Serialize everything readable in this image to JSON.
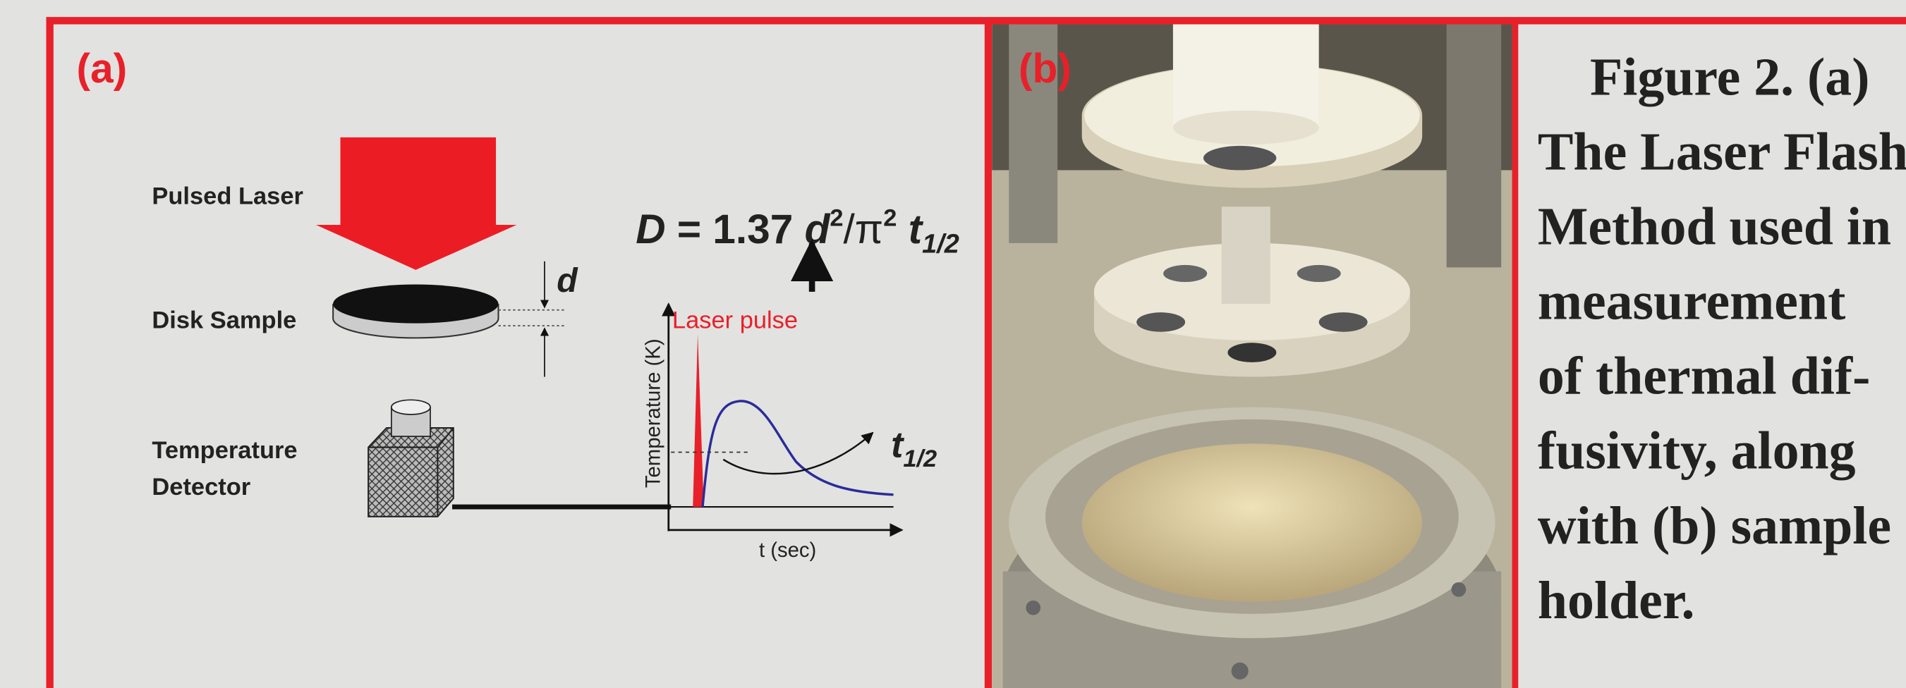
{
  "panel_a": {
    "label": "(a)",
    "pulsed_laser": "Pulsed Laser",
    "disk_sample": "Disk Sample",
    "detector_lines": [
      "Temperature",
      "Detector"
    ],
    "thickness": "d",
    "laser_pulse": "Laser pulse",
    "y_axis": "Temperature (K)",
    "x_axis": "t (sec)",
    "half_time": {
      "base": "t",
      "sub": "1/2"
    },
    "formula": [
      "D",
      " = 1.37 ",
      "d",
      "2",
      "/π",
      "2",
      " t",
      "1/2"
    ]
  },
  "panel_b": {
    "label": "(b)"
  },
  "caption": {
    "lines": [
      "Figure 2. (a)",
      "The Laser Flash",
      "Method used in",
      "measurement",
      "of thermal dif-",
      "fusivity, along",
      "with (b) sample",
      "holder."
    ]
  }
}
